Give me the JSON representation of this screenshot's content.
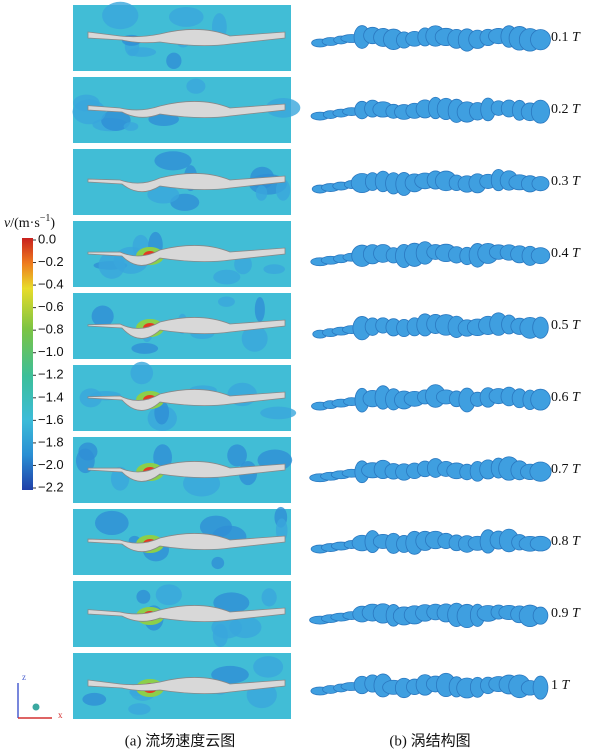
{
  "colorbar": {
    "label": [
      "v",
      "/(m·s",
      "−1",
      ")"
    ],
    "ticks": [
      "0.0",
      "−0.2",
      "−0.4",
      "−0.6",
      "−0.8",
      "−1.0",
      "−1.2",
      "−1.4",
      "−1.6",
      "−1.8",
      "−2.0",
      "−2.2"
    ]
  },
  "rows": [
    {
      "time": "0.1",
      "symbol": "T"
    },
    {
      "time": "0.2",
      "symbol": "T"
    },
    {
      "time": "0.3",
      "symbol": "T"
    },
    {
      "time": "0.4",
      "symbol": "T"
    },
    {
      "time": "0.5",
      "symbol": "T"
    },
    {
      "time": "0.6",
      "symbol": "T"
    },
    {
      "time": "0.7",
      "symbol": "T"
    },
    {
      "time": "0.8",
      "symbol": "T"
    },
    {
      "time": "0.9",
      "symbol": "T"
    },
    {
      "time": "1",
      "symbol": "T"
    }
  ],
  "axes": {
    "z": "z",
    "x": "x"
  },
  "captions": [
    "(a) 流场速度云图",
    "(b) 涡结构图"
  ]
}
